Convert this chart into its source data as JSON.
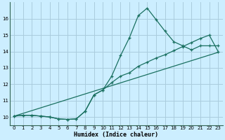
{
  "xlabel": "Humidex (Indice chaleur)",
  "bg_color": "#cceeff",
  "grid_color": "#aaccdd",
  "line_color": "#1a7060",
  "xlim": [
    -0.5,
    23.5
  ],
  "ylim": [
    9.5,
    17.0
  ],
  "yticks": [
    10,
    11,
    12,
    13,
    14,
    15,
    16
  ],
  "xticks": [
    0,
    1,
    2,
    3,
    4,
    5,
    6,
    7,
    8,
    9,
    10,
    11,
    12,
    13,
    14,
    15,
    16,
    17,
    18,
    19,
    20,
    21,
    22,
    23
  ],
  "series1_x": [
    0,
    1,
    2,
    3,
    4,
    5,
    6,
    7,
    8,
    9,
    10,
    11,
    12,
    13,
    14,
    15,
    16,
    17,
    18,
    19,
    20,
    21,
    22,
    23
  ],
  "series1_y": [
    10.05,
    10.1,
    10.1,
    10.05,
    10.0,
    9.88,
    9.85,
    9.88,
    10.35,
    11.35,
    11.65,
    12.5,
    13.75,
    14.85,
    16.2,
    16.65,
    15.95,
    15.25,
    14.6,
    14.35,
    14.1,
    14.35,
    14.35,
    14.35
  ],
  "series2_x": [
    0,
    1,
    2,
    3,
    4,
    5,
    6,
    7,
    8,
    9,
    10,
    11,
    12,
    13,
    14,
    15,
    16,
    17,
    18,
    19,
    20,
    21,
    22,
    23
  ],
  "series2_y": [
    10.05,
    10.1,
    10.1,
    10.05,
    10.0,
    9.88,
    9.85,
    9.88,
    10.35,
    11.35,
    11.65,
    12.1,
    12.5,
    12.7,
    13.1,
    13.35,
    13.6,
    13.8,
    14.05,
    14.3,
    14.55,
    14.8,
    15.0,
    14.0
  ],
  "series3_x": [
    0,
    23
  ],
  "series3_y": [
    10.05,
    13.95
  ]
}
